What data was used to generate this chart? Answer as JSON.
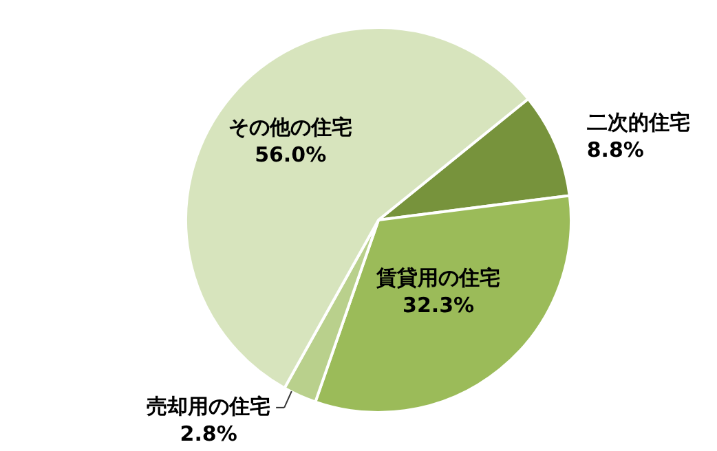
{
  "chart_data": {
    "type": "pie",
    "categories": [
      "二次的住宅",
      "賃貸用の住宅",
      "売却用の住宅",
      "その他の住宅"
    ],
    "values": [
      8.8,
      32.3,
      2.8,
      56.0
    ],
    "colors": [
      "#77933c",
      "#9bbb59",
      "#b9d08c",
      "#d7e4bd"
    ],
    "value_labels": [
      "8.8%",
      "32.3%",
      "2.8%",
      "56.0%"
    ]
  }
}
